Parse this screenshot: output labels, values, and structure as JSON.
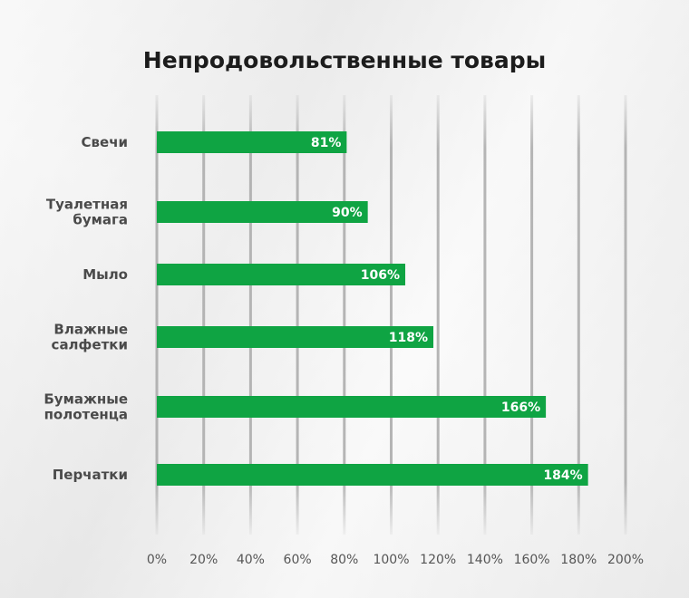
{
  "chart_data": {
    "type": "bar",
    "orientation": "horizontal",
    "title": "Непродовольственные товары",
    "categories": [
      [
        "Свечи"
      ],
      [
        "Туалетная",
        "бумага"
      ],
      [
        "Мыло"
      ],
      [
        "Влажные",
        "салфетки"
      ],
      [
        "Бумажные",
        "полотенца"
      ],
      [
        "Перчатки"
      ]
    ],
    "values": [
      81,
      90,
      106,
      118,
      166,
      184
    ],
    "value_labels": [
      "81%",
      "90%",
      "106%",
      "118%",
      "166%",
      "184%"
    ],
    "xlim": [
      0,
      200
    ],
    "ticks": [
      0,
      20,
      40,
      60,
      80,
      100,
      120,
      140,
      160,
      180,
      200
    ],
    "tick_labels": [
      "0%",
      "20%",
      "40%",
      "60%",
      "80%",
      "100%",
      "120%",
      "140%",
      "160%",
      "180%",
      "200%"
    ],
    "grid": true,
    "colors": {
      "bar": "#0fa443",
      "grid": "#b5b5b5",
      "title": "#1c1c1c"
    }
  }
}
